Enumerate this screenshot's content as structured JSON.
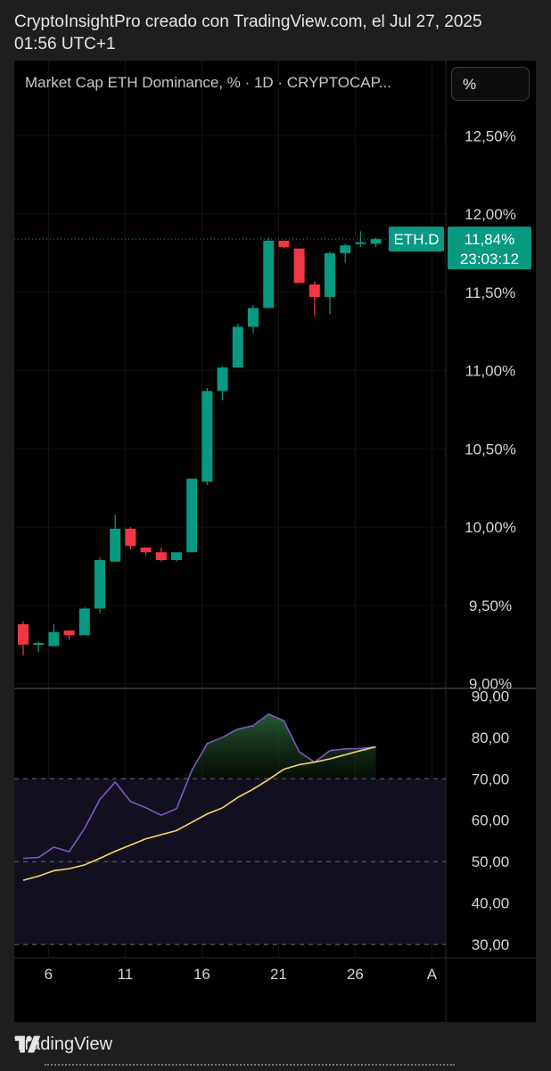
{
  "attribution": "CryptoInsightPro creado con TradingView.com, el Jul 27, 2025 01:56 UTC+1",
  "header": {
    "title": "Market Cap ETH Dominance, % · 1D · CRYPTOCAP...",
    "unit_button": "%"
  },
  "footer": {
    "brand": "TradingView"
  },
  "colors": {
    "up": "#089981",
    "down": "#f23645",
    "rsi_line": "#7e57c2",
    "rsi_ma": "#f7d96b",
    "tag": "#089981"
  },
  "chart_data": [
    {
      "type": "candlestick",
      "symbol": "ETH.D",
      "y_ticks": [
        "12,50%",
        "12,00%",
        "11,50%",
        "11,00%",
        "10,50%",
        "10,00%",
        "9,50%",
        "9,00%"
      ],
      "ylim": [
        8.97,
        12.98
      ],
      "last_price": {
        "symbol": "ETH.D",
        "value": "11,84%",
        "countdown": "23:03:12"
      },
      "candles": [
        {
          "o": 9.38,
          "h": 9.4,
          "l": 9.18,
          "c": 9.25
        },
        {
          "o": 9.25,
          "h": 9.27,
          "l": 9.2,
          "c": 9.26
        },
        {
          "o": 9.24,
          "h": 9.38,
          "l": 9.24,
          "c": 9.33
        },
        {
          "o": 9.34,
          "h": 9.34,
          "l": 9.28,
          "c": 9.31
        },
        {
          "o": 9.31,
          "h": 9.49,
          "l": 9.31,
          "c": 9.48
        },
        {
          "o": 9.48,
          "h": 9.81,
          "l": 9.45,
          "c": 9.79
        },
        {
          "o": 9.78,
          "h": 10.08,
          "l": 9.78,
          "c": 9.99
        },
        {
          "o": 9.99,
          "h": 10.0,
          "l": 9.86,
          "c": 9.88
        },
        {
          "o": 9.87,
          "h": 9.87,
          "l": 9.82,
          "c": 9.84
        },
        {
          "o": 9.84,
          "h": 9.87,
          "l": 9.78,
          "c": 9.79
        },
        {
          "o": 9.79,
          "h": 9.84,
          "l": 9.78,
          "c": 9.84
        },
        {
          "o": 9.84,
          "h": 10.31,
          "l": 9.84,
          "c": 10.31
        },
        {
          "o": 10.29,
          "h": 10.89,
          "l": 10.27,
          "c": 10.87
        },
        {
          "o": 10.87,
          "h": 11.03,
          "l": 10.81,
          "c": 11.02
        },
        {
          "o": 11.02,
          "h": 11.3,
          "l": 11.02,
          "c": 11.28
        },
        {
          "o": 11.28,
          "h": 11.42,
          "l": 11.24,
          "c": 11.4
        },
        {
          "o": 11.4,
          "h": 11.85,
          "l": 11.4,
          "c": 11.83
        },
        {
          "o": 11.83,
          "h": 11.83,
          "l": 11.78,
          "c": 11.79
        },
        {
          "o": 11.78,
          "h": 11.78,
          "l": 11.56,
          "c": 11.56
        },
        {
          "o": 11.55,
          "h": 11.57,
          "l": 11.35,
          "c": 11.47
        },
        {
          "o": 11.47,
          "h": 11.76,
          "l": 11.36,
          "c": 11.75
        },
        {
          "o": 11.75,
          "h": 11.81,
          "l": 11.69,
          "c": 11.8
        },
        {
          "o": 11.81,
          "h": 11.89,
          "l": 11.79,
          "c": 11.82
        },
        {
          "o": 11.81,
          "h": 11.85,
          "l": 11.79,
          "c": 11.84
        }
      ]
    },
    {
      "type": "line",
      "indicator": "RSI",
      "y_ticks": [
        "90,00",
        "80,00",
        "70,00",
        "60,00",
        "50,00",
        "40,00",
        "30,00"
      ],
      "ylim": [
        26.8,
        91.8
      ],
      "bands": [
        70,
        50,
        30
      ],
      "x_ticks": [
        "6",
        "11",
        "16",
        "21",
        "26",
        "A"
      ],
      "series": [
        {
          "values": [
            50.8,
            51.0,
            53.5,
            52.4,
            58.0,
            65.0,
            69.2,
            64.5,
            63.0,
            61.2,
            62.8,
            72.0,
            78.5,
            80.0,
            82.0,
            82.8,
            85.6,
            84.0,
            76.5,
            74.0,
            76.8,
            77.2,
            77.3,
            77.7
          ]
        },
        {
          "values": [
            45.5,
            46.5,
            47.8,
            48.3,
            49.2,
            50.8,
            52.5,
            54.0,
            55.5,
            56.5,
            57.5,
            59.5,
            61.5,
            63.0,
            65.5,
            67.5,
            69.8,
            72.3,
            73.4,
            74.0,
            74.8,
            75.8,
            76.8,
            77.7
          ]
        }
      ]
    }
  ]
}
